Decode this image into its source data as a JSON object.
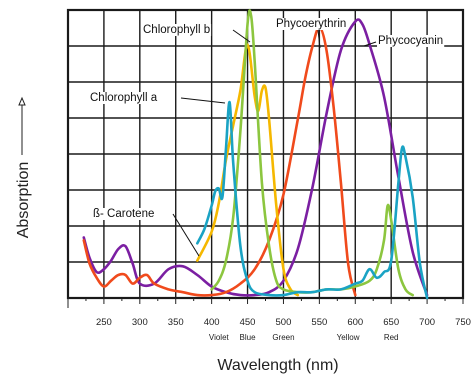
{
  "chart_data": {
    "type": "line",
    "xlabel": "Wavelength (nm)",
    "ylabel": "Absorption",
    "xlim": [
      200,
      750
    ],
    "ylim": [
      0,
      1
    ],
    "grid": true,
    "x_ticks": [
      250,
      300,
      350,
      400,
      450,
      500,
      550,
      600,
      650,
      700,
      750
    ],
    "color_bands": [
      {
        "label": "Violet",
        "x": 410
      },
      {
        "label": "Blue",
        "x": 450
      },
      {
        "label": "Green",
        "x": 500
      },
      {
        "label": "Yellow",
        "x": 590
      },
      {
        "label": "Red",
        "x": 650
      }
    ],
    "series": [
      {
        "name": "Chlorophyll a",
        "color": "#1aa3c4",
        "x": [
          380,
          390,
          400,
          405,
          410,
          415,
          420,
          425,
          430,
          440,
          450,
          460,
          480,
          500,
          520,
          540,
          560,
          580,
          600,
          610,
          620,
          630,
          640,
          650,
          660,
          665,
          670,
          680,
          690,
          700
        ],
        "y": [
          0.19,
          0.24,
          0.32,
          0.37,
          0.38,
          0.35,
          0.52,
          0.68,
          0.47,
          0.18,
          0.06,
          0.02,
          0.01,
          0.01,
          0.02,
          0.02,
          0.03,
          0.03,
          0.05,
          0.06,
          0.1,
          0.07,
          0.09,
          0.13,
          0.4,
          0.52,
          0.49,
          0.35,
          0.12,
          0.0
        ]
      },
      {
        "name": "Chlorophyll b",
        "color": "#8cc63f",
        "x": [
          400,
          410,
          420,
          430,
          440,
          450,
          455,
          460,
          470,
          480,
          490,
          500,
          520,
          540,
          560,
          580,
          600,
          620,
          630,
          640,
          645,
          650,
          660,
          670,
          680
        ],
        "y": [
          0.03,
          0.06,
          0.13,
          0.28,
          0.58,
          0.95,
          0.98,
          0.82,
          0.4,
          0.18,
          0.06,
          0.03,
          0.02,
          0.02,
          0.03,
          0.03,
          0.04,
          0.06,
          0.1,
          0.2,
          0.32,
          0.27,
          0.1,
          0.03,
          0.01
        ]
      },
      {
        "name": "β-Carotene",
        "color": "#f5b800",
        "x": [
          380,
          400,
          410,
          420,
          430,
          440,
          450,
          460,
          465,
          470,
          475,
          480,
          490,
          500,
          510,
          520
        ],
        "y": [
          0.13,
          0.23,
          0.33,
          0.48,
          0.6,
          0.72,
          0.88,
          0.7,
          0.65,
          0.72,
          0.73,
          0.62,
          0.32,
          0.1,
          0.03,
          0.01
        ]
      },
      {
        "name": "Phycoerythrin",
        "color": "#f04a1c",
        "x": [
          222,
          230,
          240,
          250,
          260,
          270,
          280,
          290,
          300,
          310,
          320,
          340,
          360,
          380,
          400,
          420,
          440,
          460,
          480,
          500,
          520,
          530,
          540,
          550,
          560,
          570,
          580,
          590,
          600
        ],
        "y": [
          0.2,
          0.12,
          0.07,
          0.04,
          0.06,
          0.08,
          0.08,
          0.05,
          0.07,
          0.08,
          0.05,
          0.03,
          0.02,
          0.01,
          0.01,
          0.02,
          0.05,
          0.1,
          0.2,
          0.36,
          0.62,
          0.76,
          0.87,
          0.94,
          0.86,
          0.66,
          0.4,
          0.12,
          0.01
        ]
      },
      {
        "name": "Phycocyanin",
        "color": "#7b1fa2",
        "x": [
          222,
          230,
          240,
          250,
          260,
          270,
          280,
          290,
          300,
          320,
          340,
          360,
          380,
          400,
          420,
          440,
          460,
          480,
          500,
          520,
          540,
          560,
          580,
          600,
          610,
          620,
          640,
          660,
          680,
          700
        ],
        "y": [
          0.21,
          0.14,
          0.09,
          0.1,
          0.13,
          0.17,
          0.18,
          0.12,
          0.05,
          0.05,
          0.1,
          0.11,
          0.08,
          0.04,
          0.02,
          0.01,
          0.01,
          0.02,
          0.06,
          0.17,
          0.38,
          0.64,
          0.86,
          0.96,
          0.95,
          0.88,
          0.7,
          0.42,
          0.16,
          0.01
        ]
      }
    ],
    "annotations": [
      {
        "text": "Chlorophyll b"
      },
      {
        "text": "Phycoerythrin"
      },
      {
        "text": "Phycocyanin"
      },
      {
        "text": "Chlorophyll a"
      },
      {
        "text": "ß- Carotene"
      }
    ]
  }
}
